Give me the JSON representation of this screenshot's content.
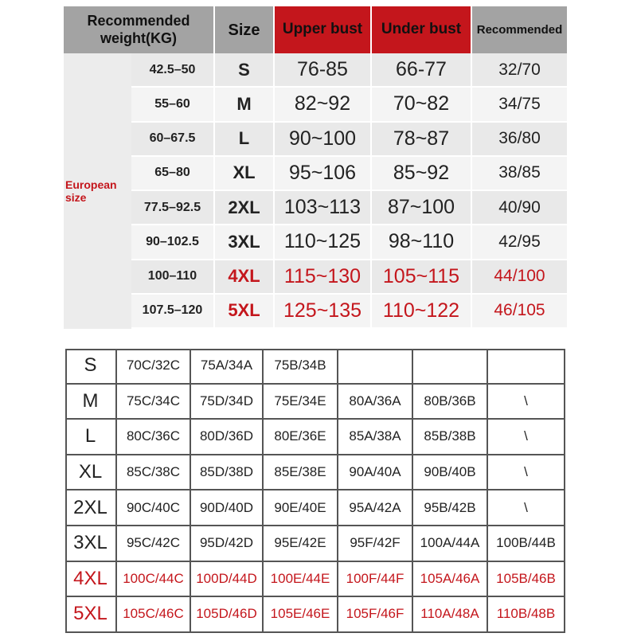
{
  "top_table": {
    "header": {
      "weight": "Recommended weight(KG)",
      "size": "Size",
      "upper_bust": "Upper bust",
      "under_bust": "Under bust",
      "recommended": "Recommended"
    },
    "group_label": "European size",
    "rows": [
      [
        "42.5–50",
        "S",
        "76-85",
        "66-77",
        "32/70"
      ],
      [
        "55–60",
        "M",
        "82~92",
        "70~82",
        "34/75"
      ],
      [
        "60–67.5",
        "L",
        "90~100",
        "78~87",
        "36/80"
      ],
      [
        "65–80",
        "XL",
        "95~106",
        "85~92",
        "38/85"
      ],
      [
        "77.5–92.5",
        "2XL",
        "103~113",
        "87~100",
        "40/90"
      ],
      [
        "90–102.5",
        "3XL",
        "110~125",
        "98~110",
        "42/95"
      ],
      [
        "100–110",
        "4XL",
        "115~130",
        "105~115",
        "44/100"
      ],
      [
        "107.5–120",
        "5XL",
        "125~135",
        "110~122",
        "46/105"
      ]
    ]
  },
  "bottom_table": {
    "rows": [
      [
        "S",
        "70C/32C",
        "75A/34A",
        "75B/34B"
      ],
      [
        "M",
        "75C/34C",
        "75D/34D",
        "75E/34E",
        "80A/36A",
        "80B/36B",
        "\\"
      ],
      [
        "L",
        "80C/36C",
        "80D/36D",
        "80E/36E",
        "85A/38A",
        "85B/38B",
        "\\"
      ],
      [
        "XL",
        "85C/38C",
        "85D/38D",
        "85E/38E",
        "90A/40A",
        "90B/40B",
        "\\"
      ],
      [
        "2XL",
        "90C/40C",
        "90D/40D",
        "90E/40E",
        "95A/42A",
        "95B/42B",
        "\\"
      ],
      [
        "3XL",
        "95C/42C",
        "95D/42D",
        "95E/42E",
        "95F/42F",
        "100A/44A",
        "100B/44B"
      ],
      [
        "4XL",
        "100C/44C",
        "100D/44D",
        "100E/44E",
        "100F/44F",
        "105A/46A",
        "105B/46B"
      ],
      [
        "5XL",
        "105C/46C",
        "105D/46D",
        "105E/46E",
        "105F/46F",
        "110A/48A",
        "110B/48B"
      ]
    ]
  }
}
